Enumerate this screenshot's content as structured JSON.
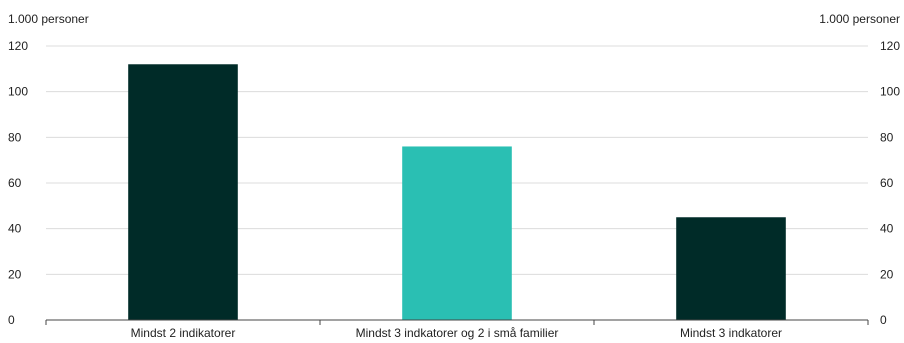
{
  "chart_data": {
    "type": "bar",
    "unit_label_left": "1.000 personer",
    "unit_label_right": "1.000 personer",
    "categories": [
      "Mindst 2 indikatorer",
      "Mindst 3 indkatorer og 2 i små familier",
      "Mindst 3 indkatorer"
    ],
    "values": [
      112,
      76,
      45
    ],
    "bar_colors": [
      "#002b28",
      "#2abfb3",
      "#002b28"
    ],
    "ylim": [
      0,
      120
    ],
    "y_ticks": [
      0,
      20,
      40,
      60,
      80,
      100,
      120
    ],
    "grid": true,
    "gridline_color": "#dcdcdc",
    "axis_color": "#444444"
  }
}
